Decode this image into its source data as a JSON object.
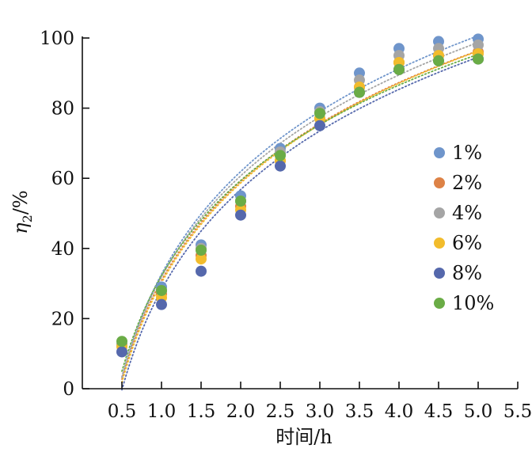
{
  "chart_data": {
    "type": "scatter",
    "title": "",
    "xlabel": "时间/h",
    "ylabel_main": "η",
    "ylabel_sub": "2",
    "ylabel_unit": "/%",
    "xlim": [
      0,
      5.5
    ],
    "ylim": [
      0,
      100
    ],
    "xticks": [
      0.5,
      1.0,
      1.5,
      2.0,
      2.5,
      3.0,
      3.5,
      4.0,
      4.5,
      5.0,
      5.5
    ],
    "xtick_labels": [
      "0.5",
      "1.0",
      "1.5",
      "2.0",
      "2.5",
      "3.0",
      "3.5",
      "4.0",
      "4.5",
      "5.0",
      "5.5"
    ],
    "yticks": [
      0,
      20,
      40,
      60,
      80,
      100
    ],
    "ytick_labels": [
      "0",
      "20",
      "40",
      "60",
      "80",
      "100"
    ],
    "grid": false,
    "legend_position": "right",
    "trendline_style": "dotted logarithmic",
    "series": [
      {
        "name": "1%",
        "color": "#6f95cb",
        "x": [
          0.5,
          1.0,
          1.5,
          2.0,
          2.5,
          3.0,
          3.5,
          4.0,
          4.5,
          5.0
        ],
        "y": [
          12.5,
          29,
          41,
          55,
          68.5,
          80,
          90,
          97,
          99,
          99.7
        ]
      },
      {
        "name": "2%",
        "color": "#dd8246",
        "x": [
          0.5,
          1.0,
          1.5,
          2.0,
          2.5,
          3.0,
          3.5,
          4.0,
          4.5,
          5.0
        ],
        "y": [
          12.5,
          27,
          38,
          52,
          65,
          77,
          86,
          93,
          95,
          96
        ]
      },
      {
        "name": "4%",
        "color": "#a5a5a5",
        "x": [
          0.5,
          1.0,
          1.5,
          2.0,
          2.5,
          3.0,
          3.5,
          4.0,
          4.5,
          5.0
        ],
        "y": [
          12.5,
          28,
          40,
          53.5,
          67.5,
          79,
          88,
          95,
          97,
          98
        ]
      },
      {
        "name": "6%",
        "color": "#f2bc2c",
        "x": [
          0.5,
          1.0,
          1.5,
          2.0,
          2.5,
          3.0,
          3.5,
          4.0,
          4.5,
          5.0
        ],
        "y": [
          12,
          26,
          37,
          51,
          65,
          77,
          86,
          93,
          95,
          95.5
        ]
      },
      {
        "name": "8%",
        "color": "#5568ac",
        "x": [
          0.5,
          1.0,
          1.5,
          2.0,
          2.5,
          3.0,
          3.5,
          4.0,
          4.5,
          5.0
        ],
        "y": [
          10.5,
          24,
          33.5,
          49.5,
          63.5,
          75,
          84.5,
          91,
          93.5,
          94
        ]
      },
      {
        "name": "10%",
        "color": "#6aac46",
        "x": [
          0.5,
          1.0,
          1.5,
          2.0,
          2.5,
          3.0,
          3.5,
          4.0,
          4.5,
          5.0
        ],
        "y": [
          13.5,
          28,
          39.5,
          53.5,
          66.5,
          78.5,
          84.5,
          91,
          93.5,
          94
        ]
      }
    ]
  }
}
